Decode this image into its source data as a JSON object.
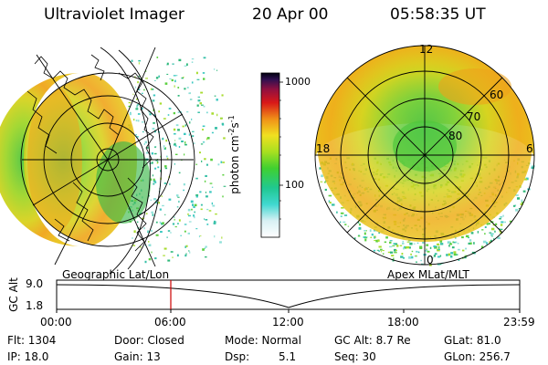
{
  "header": {
    "instrument": "Ultraviolet Imager",
    "date": "20 Apr 00",
    "time": "05:58:35 UT"
  },
  "colorbar": {
    "label": "photon cm",
    "label_exp1": "-2",
    "label_mid": "s",
    "label_exp2": "-1",
    "ticks": [
      "1000",
      "100"
    ]
  },
  "polar_plot": {
    "mlt_labels": {
      "top": "12",
      "left": "18",
      "right": "6",
      "bottom": "0"
    },
    "lat_labels": [
      "60",
      "70",
      "80"
    ]
  },
  "orbit_panel": {
    "left_title": "Geographic Lat/Lon",
    "right_title": "Apex MLat/MLT",
    "ylabel": "GC Alt",
    "y_ticks": [
      "9.0",
      "1.8"
    ],
    "x_ticks": [
      "00:00",
      "06:00",
      "12:00",
      "18:00",
      "23:59"
    ],
    "marker_time": "05:58",
    "marker_color": "#cc0000"
  },
  "footer": {
    "flt": "Flt: 1304",
    "ip": "IP: 18.0",
    "door": "Door: Closed",
    "gain": "Gain: 13",
    "mode": "Mode: Normal",
    "dsp_label": "Dsp:",
    "dsp_value": "5.1",
    "gcalt": "GC Alt: 8.7 Re",
    "seq": "Seq: 30",
    "glat": "GLat:  81.0",
    "glon": "GLon: 256.7"
  }
}
